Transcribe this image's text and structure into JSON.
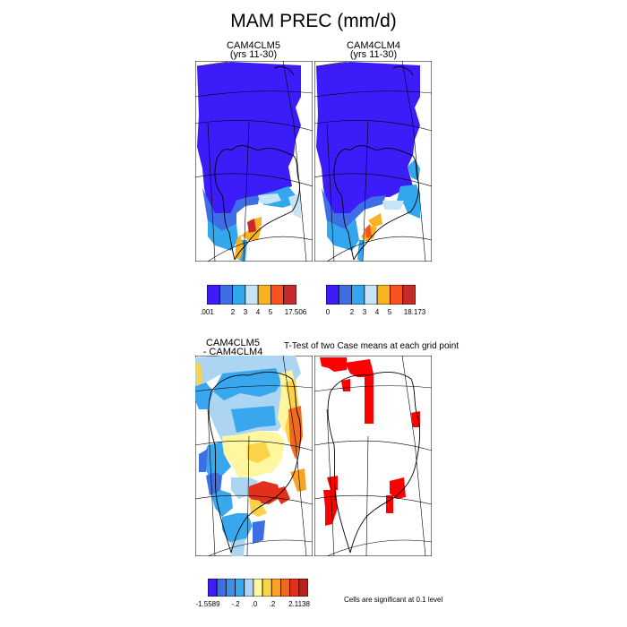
{
  "title": "MAM PREC (mm/d)",
  "panels": [
    {
      "title_line1": "CAM4CLM5",
      "title_line2": "(yrs 11-30)"
    },
    {
      "title_line1": "CAM4CLM4",
      "title_line2": "(yrs 11-30)"
    },
    {
      "title_line1": "CAM4CLM5",
      "title_line2": "- CAM4CLM4"
    },
    {
      "title_line1": "T-Test of two Case means at each grid point",
      "title_line2": ""
    }
  ],
  "colorbars": [
    {
      "name": "clm5-colorbar",
      "colors": [
        "#3d1cfa",
        "#3e6ee6",
        "#33a7ee",
        "#c6e4f6",
        "#f8b321",
        "#f8521f",
        "#c62b2b"
      ],
      "labels": [
        ".001",
        "2",
        "3",
        "4",
        "5",
        "17.506"
      ]
    },
    {
      "name": "clm4-colorbar",
      "colors": [
        "#3d1cfa",
        "#3e6ee6",
        "#33a7ee",
        "#c6e4f6",
        "#f8b321",
        "#f8521f",
        "#c62b2b"
      ],
      "labels": [
        "0",
        "2",
        "3",
        "4",
        "5",
        "18.173"
      ]
    },
    {
      "name": "diff-colorbar",
      "colors": [
        "#3d1cfa",
        "#3e6ee6",
        "#3f8ee9",
        "#38a7ee",
        "#abd5f2",
        "#fff6a0",
        "#fbd34b",
        "#f7a324",
        "#ef6a1c",
        "#e3301b",
        "#b8201f"
      ],
      "labels": [
        "-1.5589",
        "-.2",
        ".0",
        ".2",
        "2.1138"
      ]
    }
  ],
  "note": "Cells are significant at 0.1 level",
  "chart_data": [
    {
      "type": "heatmap",
      "title": "CAM4CLM5 (yrs 11-30)",
      "variable": "MAM PREC (mm/d)",
      "range": [
        0.001,
        17.506
      ]
    },
    {
      "type": "heatmap",
      "title": "CAM4CLM4 (yrs 11-30)",
      "variable": "MAM PREC (mm/d)",
      "range": [
        0,
        18.173
      ]
    },
    {
      "type": "heatmap",
      "title": "CAM4CLM5 - CAM4CLM4",
      "range": [
        -1.5589,
        2.1138
      ]
    },
    {
      "type": "heatmap",
      "title": "T-Test of two Case means at each grid point",
      "note": "Cells are significant at 0.1 level"
    }
  ]
}
